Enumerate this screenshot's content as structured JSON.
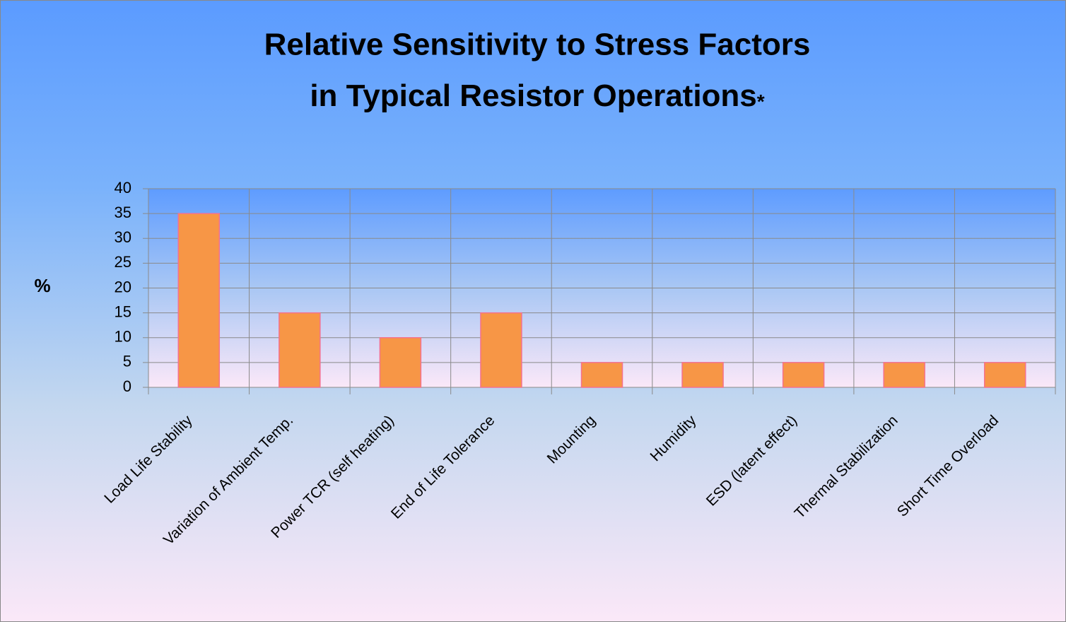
{
  "chart_data": {
    "type": "bar",
    "title": [
      "Relative Sensitivity to Stress Factors",
      "in Typical Resistor Operations"
    ],
    "title_mark": "*",
    "ylabel": "%",
    "categories": [
      "Load Life Stability",
      "Variation of Ambient Temp.",
      "Power TCR (self heating)",
      "End of Life Tolerance",
      "Mounting",
      "Humidity",
      "ESD (latent effect)",
      "Thermal Stabilization",
      "Short Time Overload"
    ],
    "values": [
      35,
      15,
      10,
      15,
      5,
      5,
      5,
      5,
      5
    ],
    "color": "#f79646",
    "ylim": [
      0,
      40
    ],
    "yticks": [
      0,
      5,
      10,
      15,
      20,
      25,
      30,
      35,
      40
    ],
    "grid": true
  }
}
